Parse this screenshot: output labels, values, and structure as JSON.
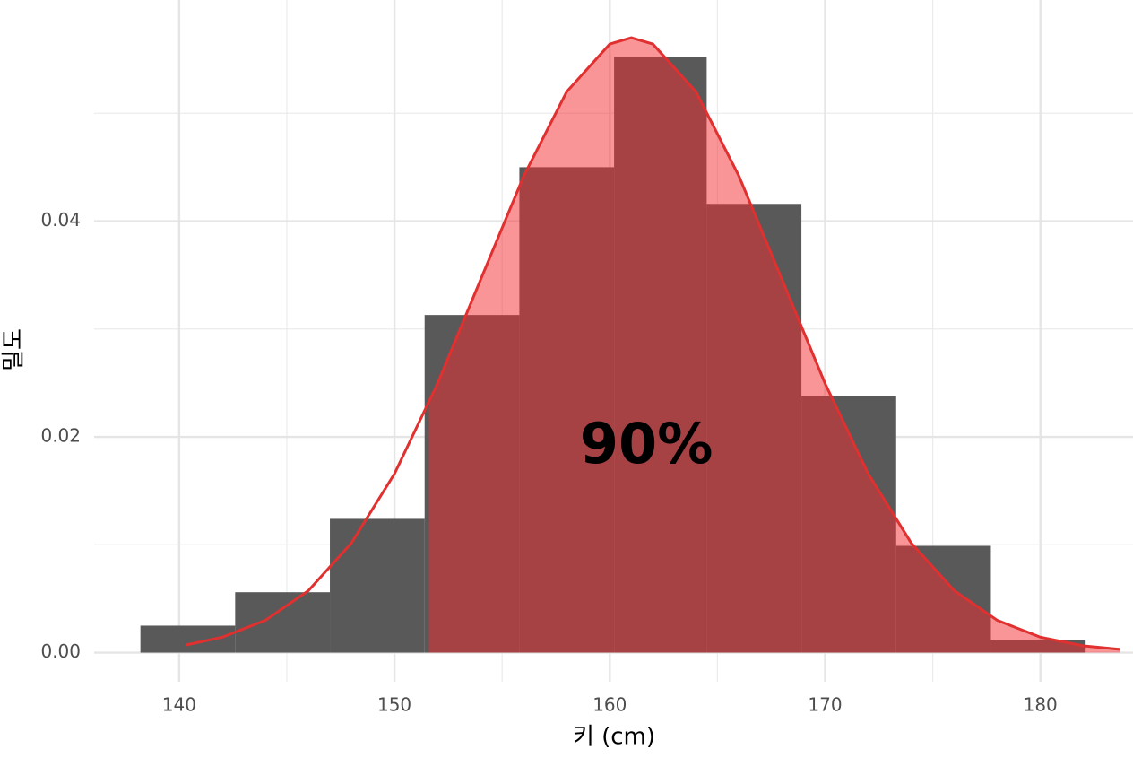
{
  "chart_data": {
    "type": "histogram",
    "xlabel": "키 (cm)",
    "ylabel": "밀도",
    "bins": [
      138.2,
      142.6,
      147.0,
      151.4,
      155.8,
      160.2,
      164.5,
      168.9,
      173.3,
      177.7,
      182.1
    ],
    "counts": [
      0.0025,
      0.0056,
      0.0124,
      0.0313,
      0.045,
      0.0552,
      0.0416,
      0.0238,
      0.0099,
      0.0012
    ],
    "color": "#595959",
    "density": {
      "color": "#e0302f",
      "fill": "#f42a2f",
      "shade_from": 151.6,
      "x": [
        140.3,
        142,
        144,
        146,
        148,
        150,
        152,
        154,
        156,
        158,
        160,
        161,
        162,
        164,
        166,
        168,
        170,
        172,
        174,
        176,
        178,
        180,
        182,
        183.7
      ],
      "y": [
        0.0007,
        0.00143,
        0.00299,
        0.00574,
        0.01016,
        0.01658,
        0.02494,
        0.03457,
        0.04417,
        0.052,
        0.05642,
        0.057,
        0.05642,
        0.052,
        0.04417,
        0.03457,
        0.02494,
        0.01658,
        0.01016,
        0.00574,
        0.00299,
        0.00143,
        0.00063,
        0.0003
      ]
    },
    "annotation": {
      "text": "90%",
      "x": 161.7,
      "y": 0.019
    },
    "xlim": [
      136.05,
      184.3
    ],
    "ylim": [
      -0.0027,
      0.0605
    ],
    "xticks": [
      140,
      150,
      160,
      170,
      180
    ],
    "minor_xticks": [
      145,
      155,
      165,
      175
    ],
    "yticks": [
      {
        "value": 0,
        "label": "0.00"
      },
      {
        "value": 0.02,
        "label": "0.02"
      },
      {
        "value": 0.04,
        "label": "0.04"
      }
    ],
    "minor_yticks": [
      0.01,
      0.03,
      0.05
    ],
    "grid": true
  }
}
